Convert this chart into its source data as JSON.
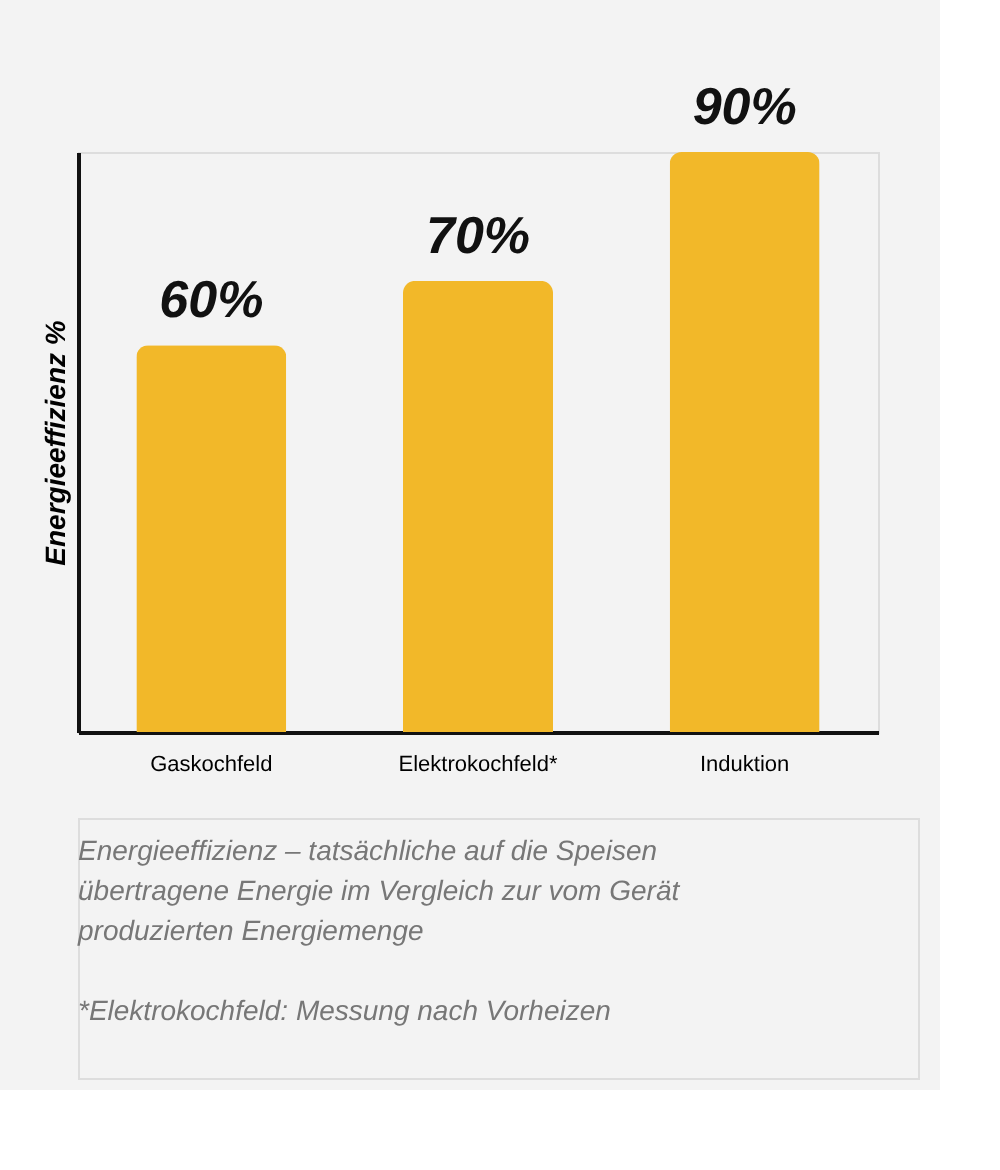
{
  "chart_data": {
    "type": "bar",
    "ylabel": "Energieeffizienz %",
    "categories": [
      "Gaskochfeld",
      "Elektrokochfeld*",
      "Induktion"
    ],
    "values": [
      60,
      70,
      90
    ],
    "value_labels": [
      "60%",
      "70%",
      "90%"
    ],
    "color": "#f2b829",
    "grid": false,
    "annotations": [
      "Energieeffizienz – tatsächliche auf die Speisen übertragene Energie im Vergleich zur vom Gerät produzierten Energiemenge",
      "*Elektrokochfeld: Messung nach Vorheizen"
    ]
  }
}
